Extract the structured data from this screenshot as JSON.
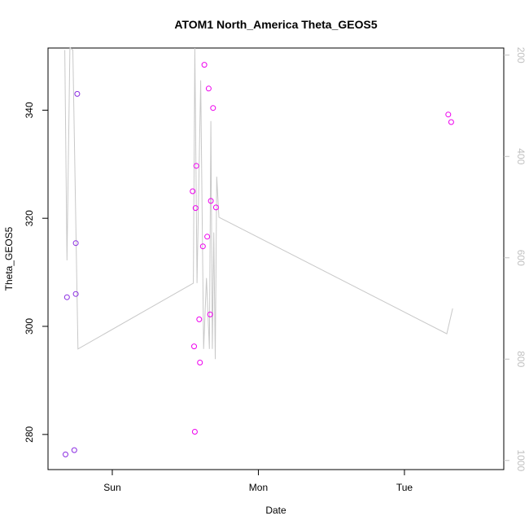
{
  "chart_data": {
    "type": "scatter",
    "title": "ATOM1 North_America Theta_GEOS5",
    "xlabel": "Date",
    "ylabel": "Theta_GEOS5",
    "x_ticks": [
      "Sun",
      "Mon",
      "Tue"
    ],
    "y_ticks": [
      280,
      300,
      320,
      340
    ],
    "y_right_ticks": [
      200,
      400,
      600,
      800,
      1000
    ],
    "xlim": [
      -0.44,
      2.68
    ],
    "ylim": [
      273.5,
      351.5
    ],
    "y_right_lim": [
      1018,
      186
    ],
    "right_axis_reversed": true,
    "grid": false,
    "colors": {
      "purple_points": "#8a2be2",
      "magenta_points": "#ee00ee",
      "line": "#c8c8c8",
      "right_axis": "#c0c0c0"
    },
    "series": [
      {
        "type": "points",
        "color": "#8a2be2",
        "x": [
          -0.32,
          -0.31,
          -0.26,
          -0.25,
          -0.25,
          -0.24
        ],
        "y": [
          276.3,
          305.4,
          277.1,
          306.0,
          315.4,
          343.0
        ]
      },
      {
        "type": "points",
        "color": "#ee00ee",
        "x": [
          0.55,
          0.56,
          0.565,
          0.57,
          0.575,
          0.595,
          0.6,
          0.62,
          0.63,
          0.65,
          0.66,
          0.67,
          0.675,
          0.69,
          0.71,
          2.3,
          2.32
        ],
        "y": [
          325.0,
          296.3,
          280.5,
          321.9,
          329.7,
          301.3,
          293.3,
          314.8,
          348.4,
          316.6,
          344.0,
          302.2,
          323.2,
          340.4,
          322.0,
          339.2,
          337.8
        ]
      },
      {
        "type": "line",
        "color": "#c8c8c8",
        "right_axis": true,
        "x": [
          -0.325,
          -0.31,
          -0.29,
          -0.27,
          -0.235,
          0.555,
          0.565,
          0.58,
          0.605,
          0.625,
          0.645,
          0.665,
          0.675,
          0.685,
          0.695,
          0.705,
          0.715,
          0.73,
          2.29,
          2.33
        ],
        "y": [
          190,
          605,
          185,
          190,
          780,
          650,
          186,
          650,
          250,
          780,
          640,
          780,
          330,
          780,
          550,
          800,
          440,
          520,
          750,
          700
        ]
      }
    ]
  }
}
